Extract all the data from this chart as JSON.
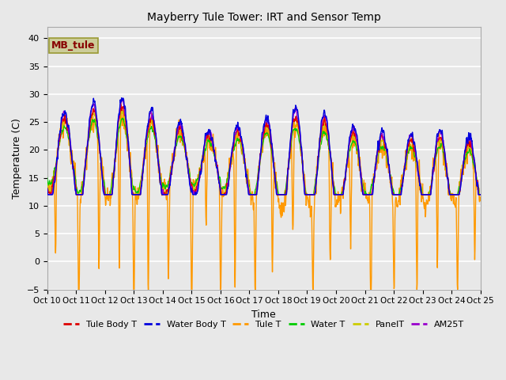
{
  "title": "Mayberry Tule Tower: IRT and Sensor Temp",
  "xlabel": "Time",
  "ylabel": "Temperature (C)",
  "ylim": [
    -5,
    42
  ],
  "yticks": [
    -5,
    0,
    5,
    10,
    15,
    20,
    25,
    30,
    35,
    40
  ],
  "xtick_labels": [
    "Oct 10",
    "Oct 11",
    "Oct 12",
    "Oct 13",
    "Oct 14",
    "Oct 15",
    "Oct 16",
    "Oct 17",
    "Oct 18",
    "Oct 19",
    "Oct 20",
    "Oct 21",
    "Oct 22",
    "Oct 23",
    "Oct 24",
    "Oct 25"
  ],
  "legend_entries": [
    "Tule Body T",
    "Water Body T",
    "Tule T",
    "Water T",
    "PanelT",
    "AM25T"
  ],
  "legend_colors": [
    "#dd0000",
    "#0000dd",
    "#ff9900",
    "#00cc00",
    "#cccc00",
    "#9900cc"
  ],
  "line_widths": [
    1.0,
    1.0,
    1.0,
    1.0,
    1.0,
    1.0
  ],
  "text_box_label": "MB_tule",
  "text_box_bg": "#cccc99",
  "text_box_fg": "#880000",
  "text_box_edge": "#999933",
  "bg_color": "#e8e8e8",
  "grid_color": "#ffffff",
  "n_days": 15,
  "pts_per_day": 96,
  "figsize": [
    6.4,
    4.8
  ],
  "dpi": 100
}
